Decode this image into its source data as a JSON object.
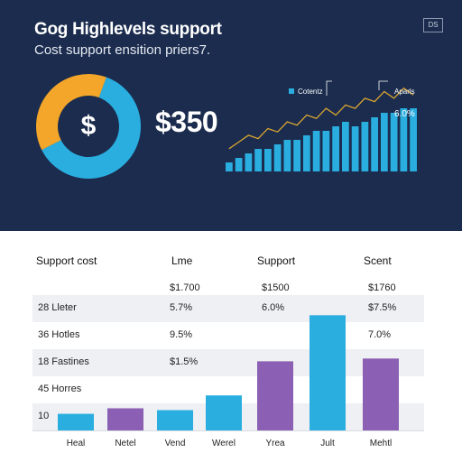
{
  "header": {
    "title": "Gog Highlevels support",
    "subtitle": "Cost support ensition priers7.",
    "corner_tag": "DS",
    "big_value": "$350",
    "currency_symbol": "$"
  },
  "colors": {
    "background_top": "#1b2c4e",
    "blue": "#2aaee0",
    "orange": "#f4a62a",
    "purple": "#8b5fb3",
    "line": "#d9a531"
  },
  "chart_data": [
    {
      "type": "pie",
      "donut": true,
      "values": [
        62,
        38
      ],
      "colors": [
        "#2aaee0",
        "#f4a62a"
      ]
    },
    {
      "type": "bar",
      "legend": [
        "Cotentz",
        "Aparls"
      ],
      "annotation": "6.0%",
      "values": [
        2,
        3,
        4,
        5,
        5,
        6,
        7,
        7,
        8,
        9,
        9,
        10,
        11,
        10,
        11,
        12,
        13,
        13,
        14,
        14
      ],
      "line": [
        3,
        5,
        7,
        6,
        9,
        8,
        11,
        10,
        13,
        12,
        15,
        13,
        16,
        15,
        18,
        17,
        20,
        18,
        21,
        19
      ],
      "grid": false
    },
    {
      "type": "bar",
      "categories": [
        "Heal",
        "Netel",
        "Vend",
        "Werel",
        "Yrea",
        "Jult",
        "Mehtl"
      ],
      "values": [
        18,
        24,
        22,
        38,
        75,
        125,
        78
      ],
      "colors": [
        "#2aaee0",
        "#8b5fb3",
        "#2aaee0",
        "#2aaee0",
        "#8b5fb3",
        "#2aaee0",
        "#8b5fb3"
      ],
      "ylim": [
        0,
        140
      ]
    }
  ],
  "table": {
    "headers": [
      "Support cost",
      "Lme",
      "Support",
      "Scent"
    ],
    "rows": [
      [
        "",
        "$1.700",
        "$1500",
        "$1760"
      ],
      [
        "28 Lleter",
        "5.7%",
        "6.0%",
        "$7.5%"
      ],
      [
        "36 Hotles",
        "9.5%",
        "",
        "7.0%"
      ],
      [
        "18 Fastines",
        "$1.5%",
        "",
        ""
      ],
      [
        "45 Horres",
        "",
        "",
        ""
      ],
      [
        "10",
        "",
        "",
        ""
      ]
    ]
  }
}
